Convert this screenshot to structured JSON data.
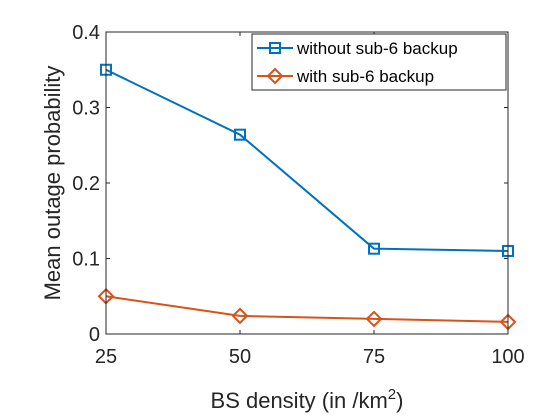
{
  "chart_data": {
    "type": "line",
    "x": [
      25,
      50,
      75,
      100
    ],
    "xlim": [
      25,
      100
    ],
    "ylim": [
      0,
      0.4
    ],
    "xticks": [
      "25",
      "50",
      "75",
      "100"
    ],
    "yticks": [
      "0",
      "0.1",
      "0.2",
      "0.3",
      "0.4"
    ],
    "xlabel": "BS density (in /km",
    "xlabel_superscript": "2",
    "xlabel_suffix": ")",
    "ylabel": "Mean outage probability",
    "grid": false,
    "legend_position": "top-right",
    "series": [
      {
        "name": "without sub-6 backup",
        "values": [
          0.35,
          0.264,
          0.113,
          0.11
        ],
        "color": "#0072BD",
        "marker": "square"
      },
      {
        "name": "with sub-6 backup",
        "values": [
          0.05,
          0.024,
          0.02,
          0.016
        ],
        "color": "#D95319",
        "marker": "diamond"
      }
    ]
  }
}
